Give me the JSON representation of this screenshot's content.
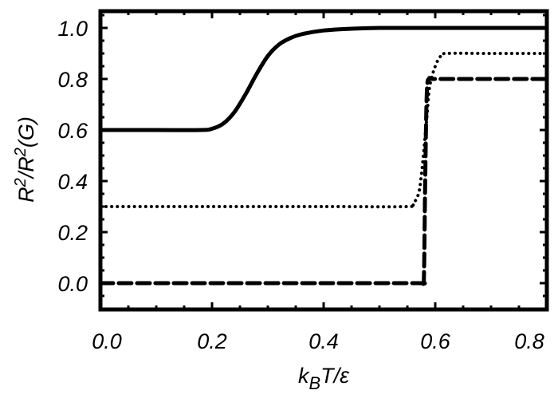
{
  "chart_data": {
    "type": "line",
    "title": "",
    "xlabel": "k_B T/ε",
    "ylabel": "R²/R²(G)",
    "xlim": [
      0.0,
      0.8
    ],
    "ylim": [
      -0.1,
      1.1
    ],
    "xticks": [
      "0.0",
      "0.2",
      "0.4",
      "0.6",
      "0.8"
    ],
    "yticks": [
      "0.0",
      "0.2",
      "0.4",
      "0.6",
      "0.8",
      "1.0"
    ],
    "grid": false,
    "legend": null,
    "series": [
      {
        "name": "solid",
        "style": "solid",
        "x": [
          0.0,
          0.1,
          0.18,
          0.2,
          0.22,
          0.24,
          0.26,
          0.28,
          0.3,
          0.32,
          0.34,
          0.36,
          0.4,
          0.45,
          0.5,
          0.6,
          0.8
        ],
        "y": [
          0.6,
          0.6,
          0.6,
          0.605,
          0.625,
          0.67,
          0.74,
          0.82,
          0.89,
          0.935,
          0.96,
          0.975,
          0.99,
          0.997,
          1.0,
          1.0,
          1.0
        ]
      },
      {
        "name": "dotted",
        "style": "dotted",
        "x": [
          0.0,
          0.2,
          0.4,
          0.55,
          0.56,
          0.57,
          0.575,
          0.58,
          0.585,
          0.59,
          0.6,
          0.61,
          0.62,
          0.7,
          0.8
        ],
        "y": [
          0.3,
          0.3,
          0.3,
          0.3,
          0.31,
          0.35,
          0.42,
          0.53,
          0.65,
          0.77,
          0.85,
          0.89,
          0.9,
          0.9,
          0.9
        ]
      },
      {
        "name": "dashed",
        "style": "dashed",
        "x": [
          0.0,
          0.2,
          0.4,
          0.57,
          0.578,
          0.58,
          0.582,
          0.585,
          0.59,
          0.6,
          0.7,
          0.8
        ],
        "y": [
          0.0,
          0.0,
          0.0,
          0.0,
          0.0,
          0.05,
          0.4,
          0.75,
          0.8,
          0.8,
          0.8,
          0.8
        ]
      }
    ]
  },
  "axes": {
    "xlabel_main": "k",
    "xlabel_sub": "B",
    "xlabel_rest": "T/ε",
    "ylabel_r1": "R",
    "ylabel_sup1": "2",
    "ylabel_mid": "/R",
    "ylabel_sup2": "2",
    "ylabel_rest": "(G)"
  }
}
